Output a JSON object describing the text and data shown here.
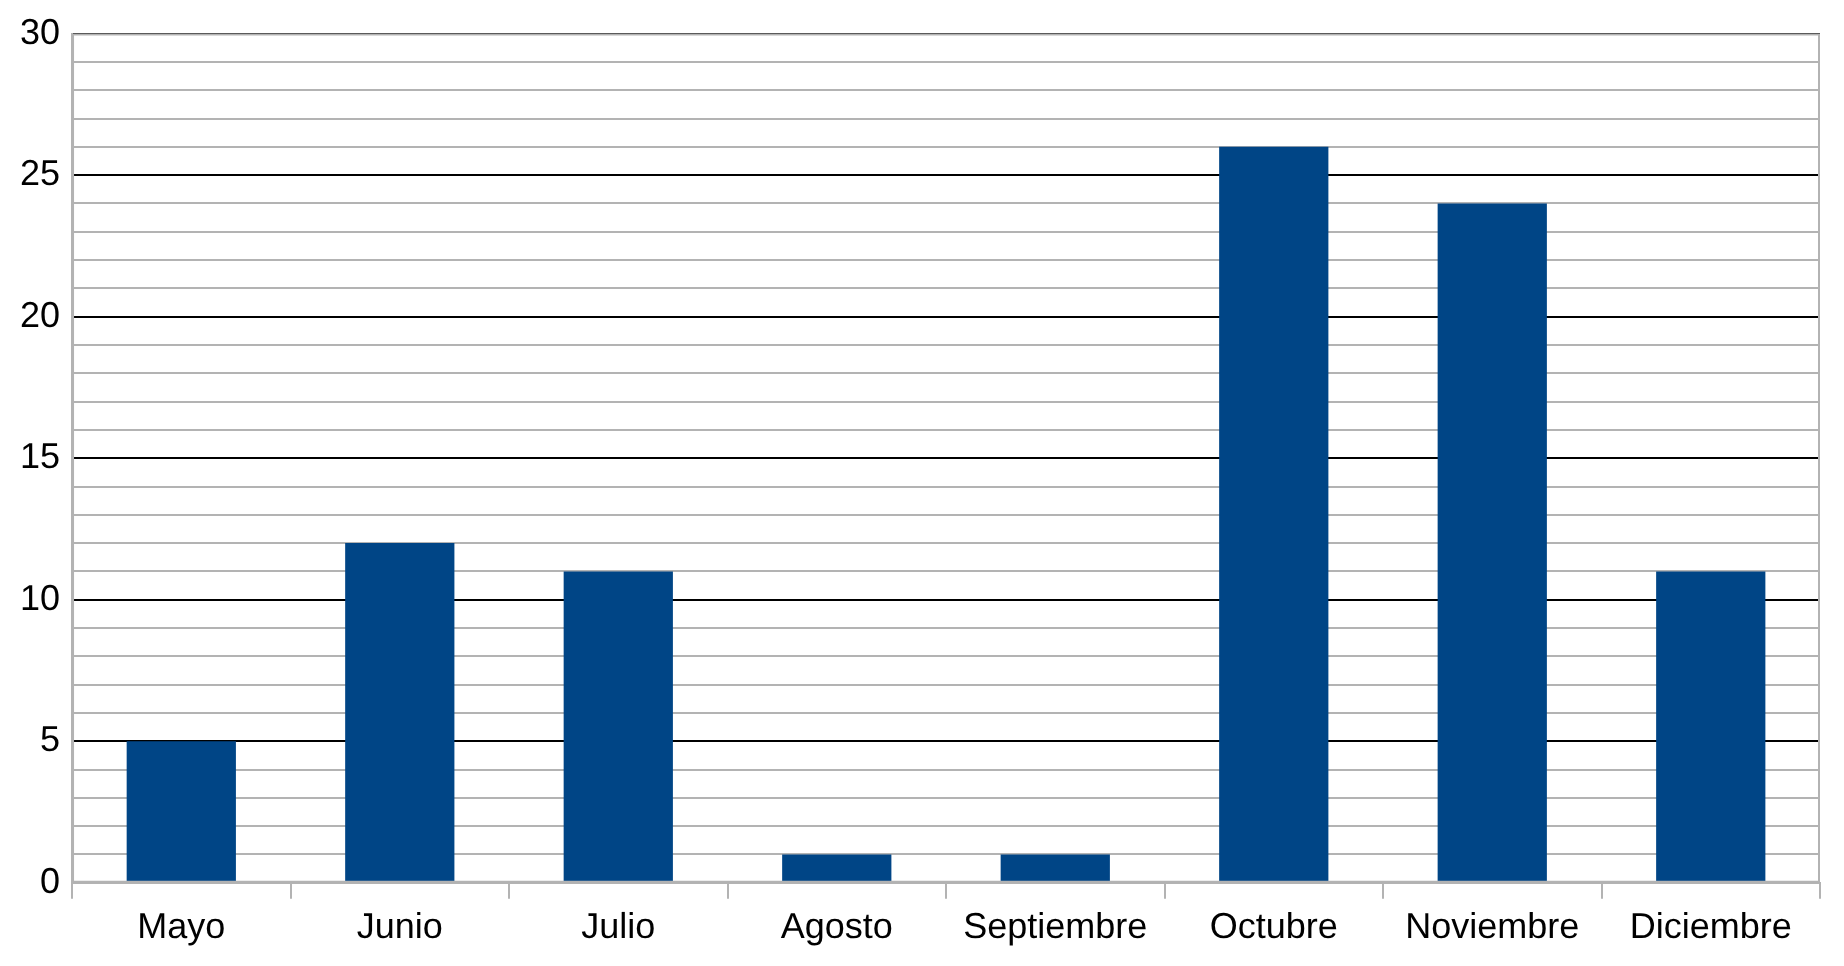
{
  "chart_data": {
    "type": "bar",
    "categories": [
      "Mayo",
      "Junio",
      "Julio",
      "Agosto",
      "Septiembre",
      "Octubre",
      "Noviembre",
      "Diciembre"
    ],
    "values": [
      5,
      12,
      11,
      1,
      1,
      26,
      24,
      11
    ],
    "color": "#004586",
    "ylim": [
      0,
      30
    ],
    "yticks": [
      0,
      {
        "value": 1,
        "label": null
      },
      {
        "value": 2,
        "label": null
      },
      {
        "value": 3,
        "label": null
      },
      {
        "value": 4,
        "label": null
      },
      5,
      {
        "value": 6,
        "label": null
      },
      {
        "value": 7,
        "label": null
      },
      {
        "value": 8,
        "label": null
      },
      {
        "value": 9,
        "label": null
      },
      10,
      {
        "value": 11,
        "label": null
      },
      {
        "value": 12,
        "label": null
      },
      {
        "value": 13,
        "label": null
      },
      {
        "value": 14,
        "label": null
      },
      15,
      {
        "value": 16,
        "label": null
      },
      {
        "value": 17,
        "label": null
      },
      {
        "value": 18,
        "label": null
      },
      {
        "value": 19,
        "label": null
      },
      20,
      {
        "value": 21,
        "label": null
      },
      {
        "value": 22,
        "label": null
      },
      {
        "value": 23,
        "label": null
      },
      {
        "value": 24,
        "label": null
      },
      25,
      {
        "value": 26,
        "label": null
      },
      {
        "value": 27,
        "label": null
      },
      {
        "value": 28,
        "label": null
      },
      {
        "value": 29,
        "label": null
      },
      30
    ],
    "grid": "y"
  }
}
